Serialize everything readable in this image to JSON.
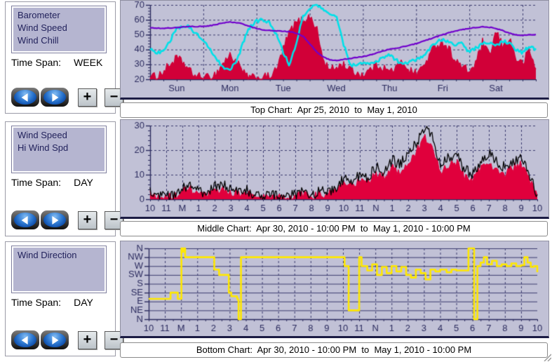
{
  "colors": {
    "panel_bg": "#c1c1d6",
    "axis": "#2b2b5e",
    "grid": "#3a3a6e",
    "caption_bg": "#ffffff",
    "barometer": "#7000cc",
    "wind_chill": "#00e0e8",
    "wind_speed_top": "#d10038",
    "hi_wind_spd": "#000000",
    "wind_speed_mid": "#e0003c",
    "wind_direction": "#ffe800"
  },
  "buttons": {
    "prev": "left-arrow",
    "next": "right-arrow",
    "zoom_in": "+",
    "zoom_out": "−"
  },
  "panels": [
    {
      "series_list": [
        "Barometer",
        "Wind Speed",
        "Wind Chill"
      ],
      "time_span_label": "Time Span:",
      "time_span": "WEEK",
      "caption": "Top Chart:  Apr 25, 2010  to  May 1, 2010"
    },
    {
      "series_list": [
        "Wind Speed",
        "Hi Wind Spd"
      ],
      "time_span_label": "Time Span:",
      "time_span": "DAY",
      "caption": "Middle Chart:  Apr 30, 2010 - 10:00 PM  to  May 1, 2010 - 10:00 PM"
    },
    {
      "series_list": [
        "Wind Direction"
      ],
      "time_span_label": "Time Span:",
      "time_span": "DAY",
      "caption": "Bottom Chart:  Apr 30, 2010 - 10:00 PM  to  May 1, 2010 - 10:00 PM"
    }
  ],
  "chart_data": [
    {
      "type": "line",
      "title": "Top Chart: Apr 25, 2010 to May 1, 2010",
      "xlim": [
        0,
        7.25
      ],
      "ylim": [
        20,
        70
      ],
      "xlabels": [
        "Sun",
        "Mon",
        "Tue",
        "Wed",
        "Thu",
        "Fri",
        "Sat"
      ],
      "xlabel_pos": [
        0.5,
        1.5,
        2.5,
        3.5,
        4.5,
        5.5,
        6.5
      ],
      "xgrid": [
        1,
        2,
        3,
        4,
        5,
        6,
        7
      ],
      "ygrid": [
        30,
        40,
        50,
        60,
        70
      ],
      "yticks": [
        20,
        30,
        40,
        50,
        60,
        70
      ],
      "yminor": 2,
      "xminor": 0.25,
      "grid": true,
      "legend": "sidebar list",
      "series": [
        {
          "name": "Wind Speed",
          "type": "area",
          "color": "#d10038",
          "baseline": 20,
          "width": 1.4,
          "noise": 3.0,
          "x0": 0,
          "dx": 0.125,
          "values": [
            21,
            22,
            25,
            30,
            34,
            31,
            25,
            22,
            21,
            21,
            24,
            31,
            36,
            32,
            24,
            21,
            20.5,
            21,
            22,
            26,
            40,
            52,
            58,
            60,
            62,
            55,
            33,
            26,
            28,
            30,
            27,
            24,
            23,
            26,
            30,
            28,
            25,
            28,
            32,
            26,
            24,
            28,
            36,
            43,
            45,
            40,
            32,
            28,
            25,
            31,
            45,
            35,
            52,
            42,
            48,
            34,
            30,
            40,
            26
          ]
        },
        {
          "name": "Wind Chill",
          "type": "line",
          "color": "#00e0e8",
          "width": 2.6,
          "noise": 1.2,
          "x0": 0,
          "dx": 0.125,
          "values": [
            40,
            38,
            39,
            46,
            54,
            56,
            55,
            50,
            46,
            40,
            34,
            28,
            27,
            32,
            45,
            55,
            59,
            60,
            58,
            50,
            38,
            29,
            45,
            62,
            68,
            70,
            67,
            64,
            63,
            45,
            30,
            29,
            31,
            30,
            32,
            34,
            37,
            33,
            30,
            32,
            33,
            36,
            40,
            45,
            47,
            45,
            43,
            44,
            38,
            41,
            44,
            45,
            42,
            46,
            44,
            40,
            38,
            42,
            40
          ]
        },
        {
          "name": "Barometer",
          "type": "line",
          "color": "#7000cc",
          "width": 2.2,
          "noise": 0.25,
          "x0": 0,
          "dx": 0.125,
          "values": [
            54.5,
            54.4,
            54.3,
            54.5,
            54.8,
            55.2,
            55.5,
            55.5,
            55.6,
            56,
            56.8,
            58,
            58.5,
            58.2,
            57,
            55.5,
            54.2,
            53.2,
            52.8,
            52.6,
            52.4,
            52,
            51,
            49,
            44,
            38.5,
            35,
            33.2,
            32.6,
            33.4,
            34,
            34.6,
            35.2,
            36.2,
            37.5,
            39,
            40.2,
            41,
            41.8,
            42.8,
            44,
            45.5,
            47,
            48.5,
            50,
            51.3,
            52.5,
            53.5,
            54.2,
            54.8,
            55.2,
            55,
            54.2,
            52.8,
            51,
            49.8,
            49.5,
            49.8,
            50
          ]
        }
      ]
    },
    {
      "type": "line",
      "title": "Middle Chart: Apr 30, 2010 - 10:00 PM to May 1, 2010 - 10:00 PM",
      "xlim": [
        0,
        24
      ],
      "ylim": [
        0,
        30
      ],
      "xlabels": [
        "10",
        "11",
        "M",
        "1",
        "2",
        "3",
        "4",
        "5",
        "6",
        "7",
        "8",
        "9",
        "10",
        "11",
        "N",
        "1",
        "2",
        "3",
        "4",
        "5",
        "6",
        "7",
        "8",
        "9",
        "10"
      ],
      "xlabel_pos": [
        0,
        1,
        2,
        3,
        4,
        5,
        6,
        7,
        8,
        9,
        10,
        11,
        12,
        13,
        14,
        15,
        16,
        17,
        18,
        19,
        20,
        21,
        22,
        23,
        24
      ],
      "xgrid": [
        1,
        2,
        3,
        4,
        5,
        6,
        7,
        8,
        9,
        10,
        11,
        12,
        13,
        14,
        15,
        16,
        17,
        18,
        19,
        20,
        21,
        22,
        23
      ],
      "ygrid": [
        10,
        20,
        30
      ],
      "yticks": [
        0,
        10,
        20,
        30
      ],
      "yminor": 2,
      "xminor": 0.5,
      "grid": true,
      "series": [
        {
          "name": "Wind Speed",
          "type": "area",
          "color": "#e0003c",
          "baseline": 0,
          "width": 1.2,
          "noise": 1.8,
          "x0": 0,
          "dx": 0.5,
          "values": [
            2,
            0.5,
            0.5,
            1,
            3,
            4,
            2,
            1,
            3,
            4,
            3,
            2,
            3,
            0.5,
            0.5,
            1,
            0.5,
            0.5,
            1,
            2,
            1,
            2,
            2,
            3,
            6,
            5,
            8,
            7,
            10,
            9,
            13,
            11,
            15,
            19,
            25,
            21,
            11,
            14,
            15,
            9,
            8,
            13,
            15,
            12,
            10,
            13,
            14,
            8,
            1
          ]
        },
        {
          "name": "Hi Wind Spd",
          "type": "line",
          "color": "#000000",
          "width": 1.3,
          "noise": 2.2,
          "densepx": 1.5,
          "x0": 0,
          "dx": 0.5,
          "values": [
            3,
            1,
            1,
            2,
            5,
            6,
            3,
            2,
            5,
            6,
            4,
            3,
            4,
            1,
            1,
            2,
            1,
            1,
            2,
            3,
            2,
            3,
            3,
            5,
            8,
            7,
            10,
            9,
            13,
            11,
            16,
            14,
            19,
            23,
            29,
            25,
            14,
            17,
            18,
            12,
            10,
            16,
            19,
            15,
            13,
            16,
            17,
            10,
            2
          ]
        }
      ]
    },
    {
      "type": "line",
      "title": "Bottom Chart: Apr 30, 2010 - 10:00 PM to May 1, 2010 - 10:00 PM",
      "xlim": [
        0,
        24
      ],
      "ylim": [
        0,
        8
      ],
      "xlabels": [
        "10",
        "11",
        "M",
        "1",
        "2",
        "3",
        "4",
        "5",
        "6",
        "7",
        "8",
        "9",
        "10",
        "11",
        "N",
        "1",
        "2",
        "3",
        "4",
        "5",
        "6",
        "7",
        "8",
        "9",
        "10"
      ],
      "xlabel_pos": [
        0,
        1,
        2,
        3,
        4,
        5,
        6,
        7,
        8,
        9,
        10,
        11,
        12,
        13,
        14,
        15,
        16,
        17,
        18,
        19,
        20,
        21,
        22,
        23,
        24
      ],
      "xgrid": [
        1,
        2,
        3,
        4,
        5,
        6,
        7,
        8,
        9,
        10,
        11,
        12,
        13,
        14,
        15,
        16,
        17,
        18,
        19,
        20,
        21,
        22,
        23
      ],
      "ygrid": [
        1,
        2,
        3,
        4,
        5,
        6,
        7,
        8
      ],
      "hgrid_dashed": false,
      "yticks": [
        0,
        1,
        2,
        3,
        4,
        5,
        6,
        7,
        8
      ],
      "ytick_labels": [
        "N",
        "NE",
        "E",
        "SE",
        "S",
        "SW",
        "W",
        "NW",
        "N"
      ],
      "xminor": 0.5,
      "grid": true,
      "series": [
        {
          "name": "Wind Direction",
          "type": "step",
          "color": "#ffe800",
          "width": 2.6,
          "points": [
            [
              0,
              2.3
            ],
            [
              0.6,
              2.3
            ],
            [
              1.3,
              2.3
            ],
            [
              1.35,
              3
            ],
            [
              1.75,
              3
            ],
            [
              1.8,
              2.3
            ],
            [
              2,
              2.3
            ],
            [
              2.02,
              8
            ],
            [
              2.1,
              7.6
            ],
            [
              2.15,
              8
            ],
            [
              2.25,
              7
            ],
            [
              3,
              7
            ],
            [
              4,
              7
            ],
            [
              4.05,
              5.6
            ],
            [
              4.3,
              5.6
            ],
            [
              4.35,
              5
            ],
            [
              4.9,
              5
            ],
            [
              4.95,
              3
            ],
            [
              5.1,
              2.6
            ],
            [
              5.45,
              2.4
            ],
            [
              5.5,
              2.2
            ],
            [
              5.55,
              0
            ],
            [
              5.65,
              0
            ],
            [
              5.7,
              7
            ],
            [
              8,
              7
            ],
            [
              10,
              7
            ],
            [
              12.05,
              7
            ],
            [
              12.1,
              6
            ],
            [
              12.3,
              6
            ],
            [
              12.35,
              1
            ],
            [
              12.95,
              1
            ],
            [
              13,
              7
            ],
            [
              13.1,
              7
            ],
            [
              13.15,
              6
            ],
            [
              13.5,
              5.5
            ],
            [
              13.8,
              6.2
            ],
            [
              14.1,
              5
            ],
            [
              14.4,
              5.9
            ],
            [
              14.7,
              5.2
            ],
            [
              15,
              6
            ],
            [
              15.3,
              5.4
            ],
            [
              15.6,
              5.9
            ],
            [
              15.9,
              5
            ],
            [
              16.2,
              4.7
            ],
            [
              16.5,
              5.6
            ],
            [
              16.8,
              5.2
            ],
            [
              17.1,
              4.5
            ],
            [
              17.4,
              5.6
            ],
            [
              17.7,
              5.4
            ],
            [
              18,
              5.6
            ],
            [
              18.4,
              5.3
            ],
            [
              18.7,
              5.6
            ],
            [
              19,
              5.5
            ],
            [
              19.4,
              5.5
            ],
            [
              19.7,
              5.5
            ],
            [
              19.75,
              8
            ],
            [
              20.05,
              8
            ],
            [
              20.1,
              0
            ],
            [
              20.25,
              0
            ],
            [
              20.3,
              6
            ],
            [
              20.5,
              6.4
            ],
            [
              20.7,
              7
            ],
            [
              20.9,
              6.2
            ],
            [
              21.2,
              6.6
            ],
            [
              21.5,
              6
            ],
            [
              21.8,
              6.2
            ],
            [
              22.1,
              6
            ],
            [
              22.4,
              6.3
            ],
            [
              22.7,
              6
            ],
            [
              23,
              6.1
            ],
            [
              23.2,
              7
            ],
            [
              23.4,
              6.4
            ],
            [
              23.6,
              5.9
            ],
            [
              23.8,
              6
            ],
            [
              24,
              5.3
            ]
          ]
        }
      ]
    }
  ]
}
